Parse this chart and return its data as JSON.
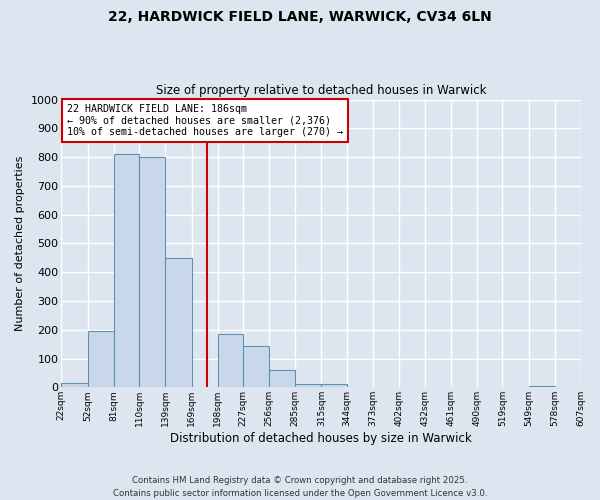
{
  "title_line1": "22, HARDWICK FIELD LANE, WARWICK, CV34 6LN",
  "title_line2": "Size of property relative to detached houses in Warwick",
  "xlabel": "Distribution of detached houses by size in Warwick",
  "ylabel": "Number of detached properties",
  "bin_edges": [
    22,
    52,
    81,
    110,
    139,
    169,
    198,
    227,
    256,
    285,
    315,
    344,
    373,
    402,
    432,
    461,
    490,
    519,
    549,
    578,
    607
  ],
  "bar_heights": [
    15,
    195,
    810,
    800,
    450,
    0,
    185,
    145,
    60,
    10,
    10,
    0,
    0,
    0,
    0,
    0,
    0,
    0,
    5,
    0
  ],
  "bar_color": "#c8d8ea",
  "bar_edge_color": "#6090b0",
  "tick_labels": [
    "22sqm",
    "52sqm",
    "81sqm",
    "110sqm",
    "139sqm",
    "169sqm",
    "198sqm",
    "227sqm",
    "256sqm",
    "285sqm",
    "315sqm",
    "344sqm",
    "373sqm",
    "402sqm",
    "432sqm",
    "461sqm",
    "490sqm",
    "519sqm",
    "549sqm",
    "578sqm",
    "607sqm"
  ],
  "vline_x": 186,
  "vline_color": "#cc0000",
  "ylim": [
    0,
    1000
  ],
  "yticks": [
    0,
    100,
    200,
    300,
    400,
    500,
    600,
    700,
    800,
    900,
    1000
  ],
  "annotation_text": "22 HARDWICK FIELD LANE: 186sqm\n← 90% of detached houses are smaller (2,376)\n10% of semi-detached houses are larger (270) →",
  "annotation_box_color": "#ffffff",
  "annotation_box_edge": "#cc0000",
  "bg_color": "#dde6f0",
  "plot_bg_color": "#dde6f0",
  "grid_color": "#ffffff",
  "footer_line1": "Contains HM Land Registry data © Crown copyright and database right 2025.",
  "footer_line2": "Contains public sector information licensed under the Open Government Licence v3.0."
}
